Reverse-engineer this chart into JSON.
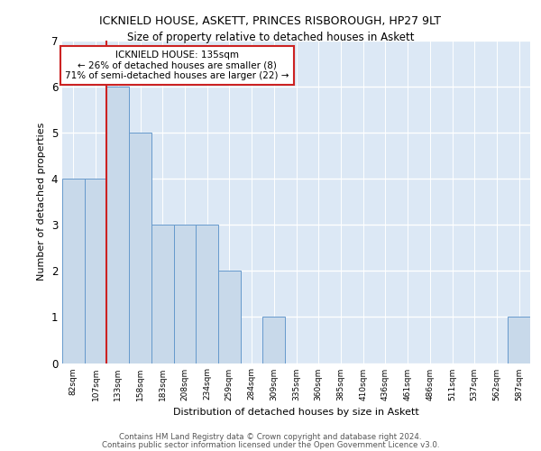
{
  "title1": "ICKNIELD HOUSE, ASKETT, PRINCES RISBOROUGH, HP27 9LT",
  "title2": "Size of property relative to detached houses in Askett",
  "xlabel": "Distribution of detached houses by size in Askett",
  "ylabel": "Number of detached properties",
  "categories": [
    "82sqm",
    "107sqm",
    "133sqm",
    "158sqm",
    "183sqm",
    "208sqm",
    "234sqm",
    "259sqm",
    "284sqm",
    "309sqm",
    "335sqm",
    "360sqm",
    "385sqm",
    "410sqm",
    "436sqm",
    "461sqm",
    "486sqm",
    "511sqm",
    "537sqm",
    "562sqm",
    "587sqm"
  ],
  "values": [
    4,
    4,
    6,
    5,
    3,
    3,
    3,
    2,
    0,
    1,
    0,
    0,
    0,
    0,
    0,
    0,
    0,
    0,
    0,
    0,
    1
  ],
  "bar_color": "#c8d9ea",
  "bar_edge_color": "#6699cc",
  "vline_color": "#cc2222",
  "vline_x_index": 2,
  "annotation_text": "ICKNIELD HOUSE: 135sqm\n← 26% of detached houses are smaller (8)\n71% of semi-detached houses are larger (22) →",
  "annotation_box_color": "white",
  "annotation_box_edge_color": "#cc2222",
  "ylim": [
    0,
    7
  ],
  "yticks": [
    0,
    1,
    2,
    3,
    4,
    5,
    6,
    7
  ],
  "footer1": "Contains HM Land Registry data © Crown copyright and database right 2024.",
  "footer2": "Contains public sector information licensed under the Open Government Licence v3.0.",
  "plot_background": "#dce8f5"
}
